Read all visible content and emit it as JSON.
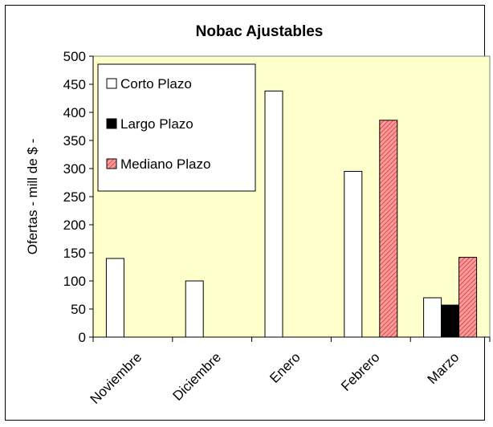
{
  "chart_data": {
    "type": "bar",
    "title": "Nobac Ajustables",
    "xlabel": "",
    "ylabel": "Ofertas - mill de $ -",
    "categories": [
      "Noviembre",
      "Diciembre",
      "Enero",
      "Febrero",
      "Marzo"
    ],
    "series": [
      {
        "name": "Corto Plazo",
        "values": [
          140,
          100,
          438,
          295,
          70
        ],
        "color": "#ffffff",
        "pattern": "solid"
      },
      {
        "name": "Largo Plazo",
        "values": [
          0,
          0,
          0,
          0,
          57
        ],
        "color": "#000000",
        "pattern": "solid"
      },
      {
        "name": "Mediano Plazo",
        "values": [
          0,
          0,
          0,
          386,
          142
        ],
        "color": "#ff9999",
        "pattern": "diagonal-hatch"
      }
    ],
    "ylim": [
      0,
      500
    ],
    "yticks": [
      0,
      50,
      100,
      150,
      200,
      250,
      300,
      350,
      400,
      450,
      500
    ],
    "plot_background": "#ffffcc",
    "legend_position": "top-left",
    "grid": false
  }
}
